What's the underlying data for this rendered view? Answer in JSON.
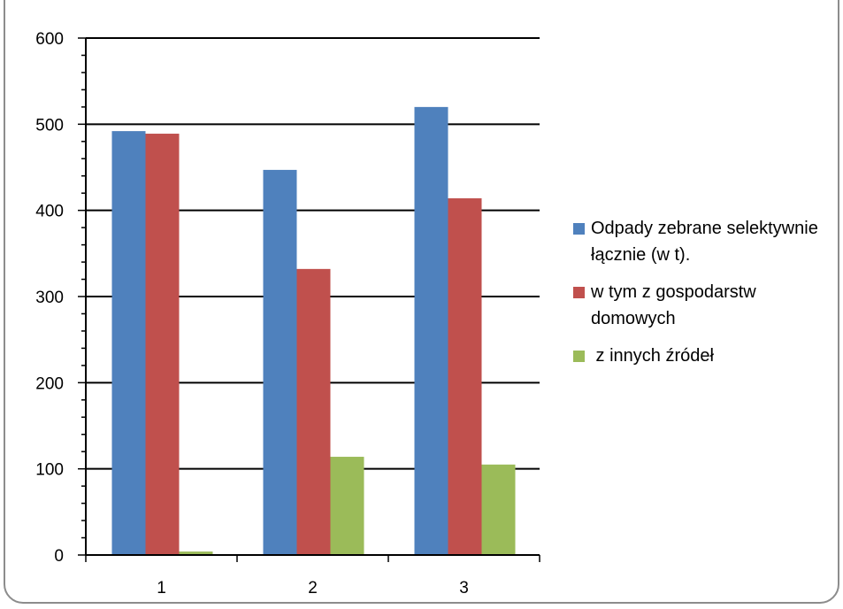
{
  "chart_data": {
    "type": "bar",
    "categories": [
      "1",
      "2",
      "3"
    ],
    "series": [
      {
        "name": "Odpady zebrane selektywnie łącznie (w t).",
        "color": "#4f81bd",
        "values": [
          492,
          447,
          520
        ]
      },
      {
        "name": "w tym z gospodarstw domowych",
        "color": "#c0504d",
        "values": [
          489,
          332,
          414
        ]
      },
      {
        "name": " z innych źródeł",
        "color": "#9bbb59",
        "values": [
          4,
          114,
          105
        ]
      }
    ],
    "y_ticks": [
      "0",
      "100",
      "200",
      "300",
      "400",
      "500",
      "600"
    ],
    "ylim": [
      0,
      600
    ],
    "grid": true,
    "legend_position": "right"
  }
}
